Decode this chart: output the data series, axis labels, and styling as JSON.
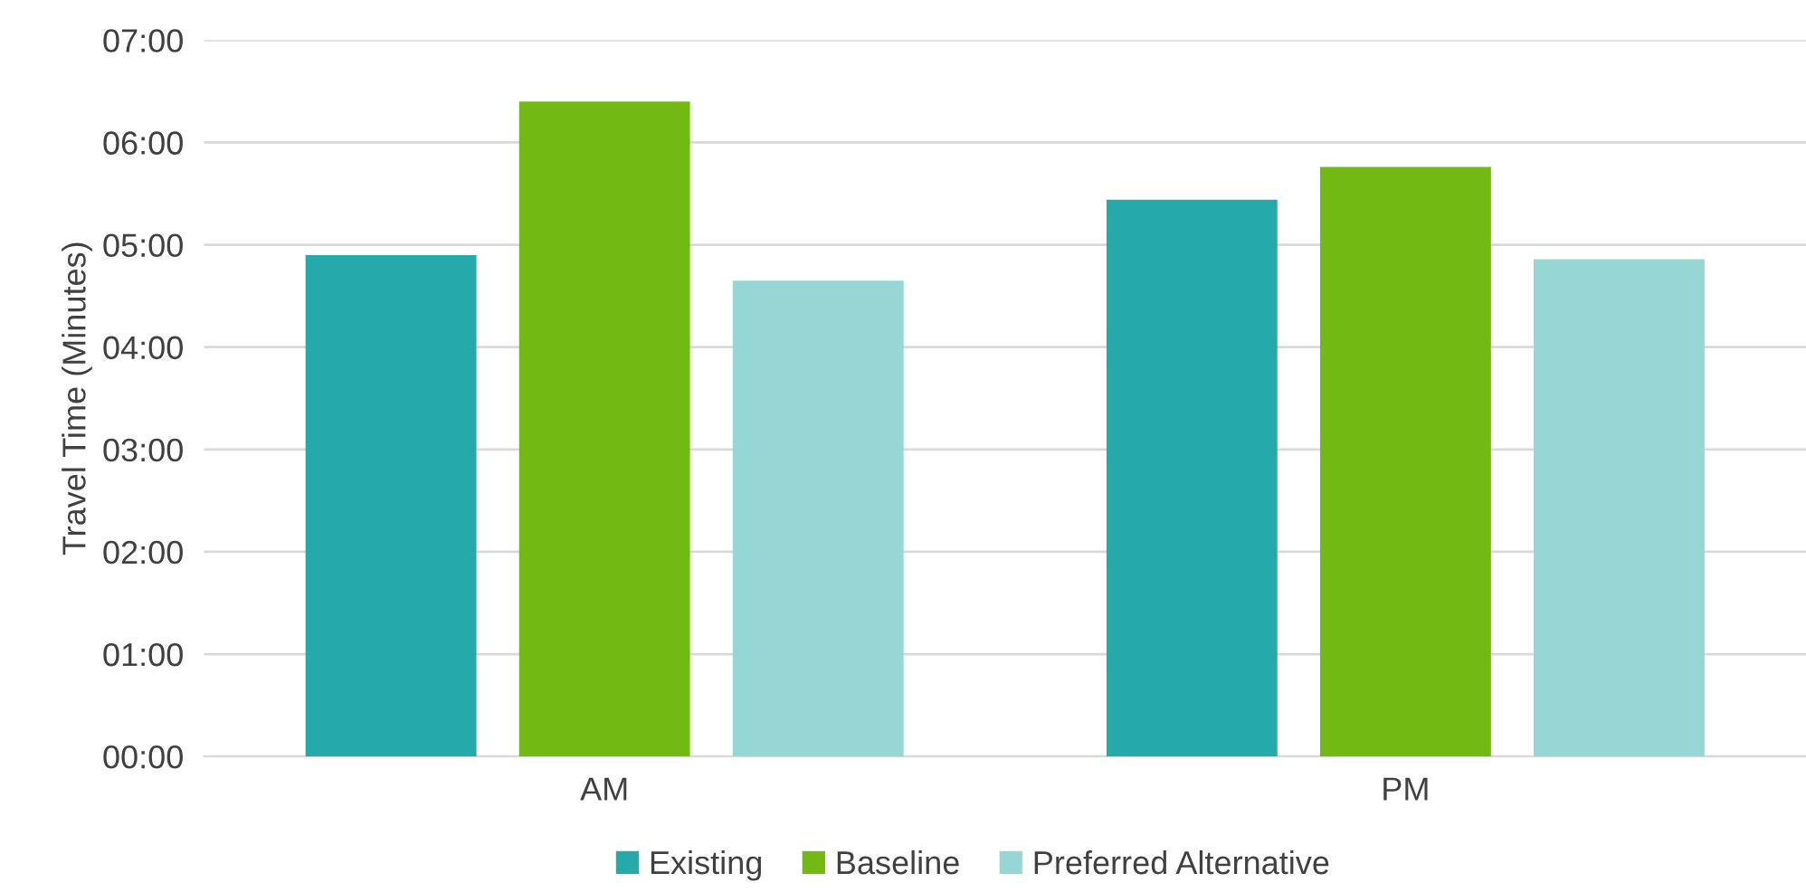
{
  "chart_data": {
    "type": "bar",
    "ylabel": "Travel Time (Minutes)",
    "categories": [
      "AM",
      "PM"
    ],
    "series": [
      {
        "name": "Existing",
        "color": "#26a9a9",
        "values": [
          4.9,
          5.44
        ]
      },
      {
        "name": "Baseline",
        "color": "#72b913",
        "values": [
          6.4,
          5.76
        ]
      },
      {
        "name": "Preferred Alternative",
        "color": "#96d7d6",
        "values": [
          4.65,
          4.86
        ]
      }
    ],
    "ylim": [
      0,
      7
    ],
    "yticks": [
      {
        "value": 0,
        "label": "00:00"
      },
      {
        "value": 1,
        "label": "01:00"
      },
      {
        "value": 2,
        "label": "02:00"
      },
      {
        "value": 3,
        "label": "03:00"
      },
      {
        "value": 4,
        "label": "04:00"
      },
      {
        "value": 5,
        "label": "05:00"
      },
      {
        "value": 6,
        "label": "06:00"
      },
      {
        "value": 7,
        "label": "07:00"
      }
    ],
    "grid": "y",
    "legend": "bottom"
  }
}
